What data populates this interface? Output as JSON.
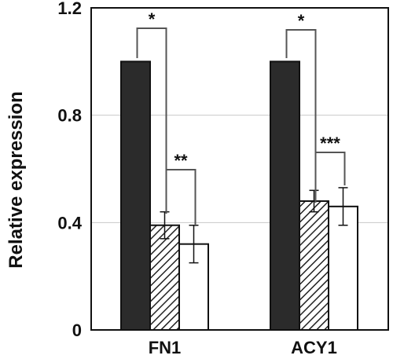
{
  "chart_data": {
    "type": "bar",
    "ylabel": "Relative expression",
    "ylim": [
      0,
      1.2
    ],
    "yticks": [
      "0",
      "0.4",
      "0.8",
      "1.2"
    ],
    "grid": true,
    "categories": [
      "FN1",
      "ACY1"
    ],
    "series": [
      {
        "fill": "#2b2b2b",
        "pattern": "solid",
        "values": [
          1.0,
          1.0
        ],
        "errors": [
          0,
          0
        ]
      },
      {
        "fill": "#ffffff",
        "pattern": "hatched",
        "values": [
          0.39,
          0.48
        ],
        "errors": [
          0.05,
          0.04
        ]
      },
      {
        "fill": "#ffffff",
        "pattern": "open",
        "values": [
          0.32,
          0.46
        ],
        "errors": [
          0.07,
          0.07
        ]
      }
    ],
    "significance": [
      {
        "category": "FN1",
        "from_series": 0,
        "to_series": 1,
        "label": "*"
      },
      {
        "category": "FN1",
        "from_series": 1,
        "to_series": 2,
        "label": "**"
      },
      {
        "category": "ACY1",
        "from_series": 0,
        "to_series": 1,
        "label": "*"
      },
      {
        "category": "ACY1",
        "from_series": 1,
        "to_series": 2,
        "label": "***"
      }
    ]
  }
}
